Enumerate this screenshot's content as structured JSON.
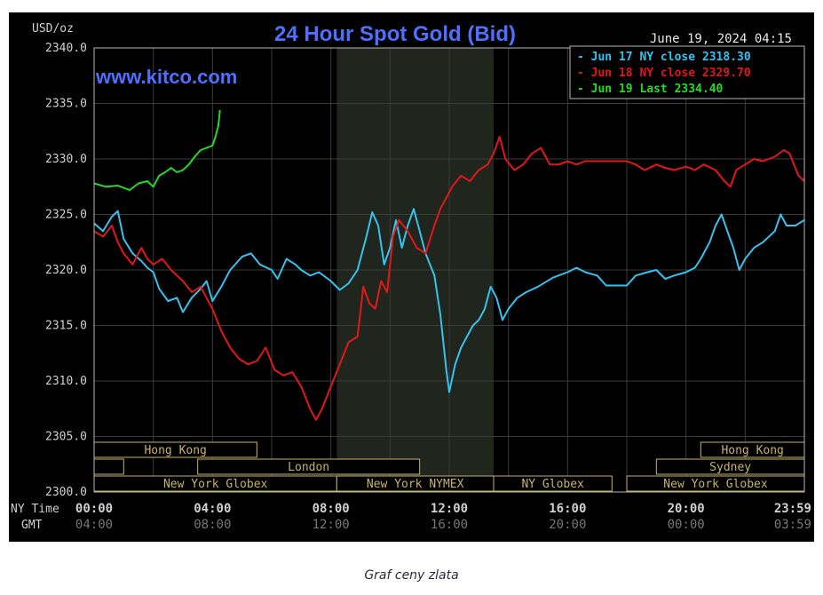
{
  "caption": "Graf ceny zlata",
  "colors": {
    "background": "#000000",
    "grid": "#3a3a3a",
    "frame": "#b8b8b8",
    "title": "#4f6fff",
    "watermark": "#4f6fff",
    "axis_text": "#d0d0d0",
    "gmt_text": "#777777",
    "session_box": "#c8b26a",
    "nymex_shade": "#20261e",
    "jun17": "#36c2ee",
    "jun18": "#e21818",
    "jun19": "#22dd22"
  },
  "chart_data": {
    "type": "line",
    "title": "24 Hour Spot Gold (Bid)",
    "watermark": "www.kitco.com",
    "timestamp": "June 19, 2024 04:15",
    "ylabel": "USD/oz",
    "ylim": [
      2300,
      2340
    ],
    "yticks": [
      "2340.0",
      "2335.0",
      "2330.0",
      "2325.0",
      "2320.0",
      "2315.0",
      "2310.0",
      "2305.0",
      "2300.0"
    ],
    "xlim": [
      0,
      24
    ],
    "xticks": [
      {
        "hour": 0,
        "ny": "00:00",
        "gmt": "04:00"
      },
      {
        "hour": 4,
        "ny": "04:00",
        "gmt": "08:00"
      },
      {
        "hour": 8,
        "ny": "08:00",
        "gmt": "12:00"
      },
      {
        "hour": 12,
        "ny": "12:00",
        "gmt": "16:00"
      },
      {
        "hour": 16,
        "ny": "16:00",
        "gmt": "20:00"
      },
      {
        "hour": 20,
        "ny": "20:00",
        "gmt": "00:00"
      },
      {
        "hour": 23.98,
        "ny": "23:59",
        "gmt": "03:59"
      }
    ],
    "x_row_labels": {
      "ny": "NY Time",
      "gmt": "GMT"
    },
    "grid": true,
    "legend_position": "top-right",
    "legend": [
      {
        "prefix": "-",
        "text": "Jun 17 NY close 2318.30",
        "color": "#36c2ee"
      },
      {
        "prefix": "-",
        "text": "Jun 18 NY close 2329.70",
        "color": "#e21818"
      },
      {
        "prefix": "-",
        "text": "Jun 19 Last 2334.40",
        "color": "#22dd22"
      }
    ],
    "shaded_region": {
      "label": "NYMEX",
      "start": 8.2,
      "end": 13.5
    },
    "sessions": [
      {
        "label": "Hong Kong",
        "start": 0,
        "end": 5.5,
        "row": 0
      },
      {
        "label": "",
        "start": 0,
        "end": 1,
        "row": 1
      },
      {
        "label": "London",
        "start": 3.5,
        "end": 11,
        "row": 1
      },
      {
        "label": "New York Globex",
        "start": 0,
        "end": 8.2,
        "row": 2
      },
      {
        "label": "New York NYMEX",
        "start": 8.2,
        "end": 13.5,
        "row": 2
      },
      {
        "label": "NY Globex",
        "start": 13.5,
        "end": 17.5,
        "row": 2
      },
      {
        "label": "Hong Kong",
        "start": 20.5,
        "end": 24,
        "row": 0
      },
      {
        "label": "Sydney",
        "start": 19,
        "end": 24,
        "row": 1
      },
      {
        "label": "New York Globex",
        "start": 18,
        "end": 24,
        "row": 2
      }
    ],
    "series": [
      {
        "name": "Jun 17",
        "color": "#36c2ee",
        "points": [
          [
            0,
            2324.2
          ],
          [
            0.3,
            2323.5
          ],
          [
            0.6,
            2324.8
          ],
          [
            0.8,
            2325.3
          ],
          [
            1.0,
            2322.8
          ],
          [
            1.3,
            2321.5
          ],
          [
            1.6,
            2320.8
          ],
          [
            1.8,
            2320.2
          ],
          [
            2.0,
            2319.8
          ],
          [
            2.2,
            2318.3
          ],
          [
            2.5,
            2317.2
          ],
          [
            2.8,
            2317.5
          ],
          [
            3.0,
            2316.2
          ],
          [
            3.3,
            2317.5
          ],
          [
            3.6,
            2318.3
          ],
          [
            3.8,
            2319.0
          ],
          [
            4.0,
            2317.2
          ],
          [
            4.3,
            2318.5
          ],
          [
            4.6,
            2320.0
          ],
          [
            5.0,
            2321.2
          ],
          [
            5.3,
            2321.5
          ],
          [
            5.6,
            2320.5
          ],
          [
            6.0,
            2320.0
          ],
          [
            6.2,
            2319.2
          ],
          [
            6.5,
            2321.0
          ],
          [
            6.8,
            2320.5
          ],
          [
            7.0,
            2320.0
          ],
          [
            7.3,
            2319.5
          ],
          [
            7.6,
            2319.8
          ],
          [
            8.0,
            2319.0
          ],
          [
            8.3,
            2318.2
          ],
          [
            8.6,
            2318.8
          ],
          [
            8.9,
            2320.0
          ],
          [
            9.2,
            2323.0
          ],
          [
            9.4,
            2325.2
          ],
          [
            9.6,
            2324.0
          ],
          [
            9.8,
            2320.5
          ],
          [
            10.0,
            2322.0
          ],
          [
            10.2,
            2324.5
          ],
          [
            10.4,
            2322.0
          ],
          [
            10.6,
            2324.0
          ],
          [
            10.8,
            2325.5
          ],
          [
            11.0,
            2323.5
          ],
          [
            11.2,
            2321.5
          ],
          [
            11.5,
            2319.5
          ],
          [
            11.7,
            2316.0
          ],
          [
            11.9,
            2311.0
          ],
          [
            12.0,
            2309.0
          ],
          [
            12.2,
            2311.5
          ],
          [
            12.4,
            2313.0
          ],
          [
            12.6,
            2314.0
          ],
          [
            12.8,
            2315.0
          ],
          [
            13.0,
            2315.5
          ],
          [
            13.2,
            2316.5
          ],
          [
            13.4,
            2318.5
          ],
          [
            13.6,
            2317.5
          ],
          [
            13.8,
            2315.5
          ],
          [
            14.0,
            2316.5
          ],
          [
            14.3,
            2317.5
          ],
          [
            14.6,
            2318.0
          ],
          [
            15.0,
            2318.5
          ],
          [
            15.5,
            2319.3
          ],
          [
            16.0,
            2319.8
          ],
          [
            16.3,
            2320.2
          ],
          [
            16.6,
            2319.8
          ],
          [
            17.0,
            2319.5
          ],
          [
            17.3,
            2318.6
          ],
          [
            18.0,
            2318.6
          ],
          [
            18.3,
            2319.5
          ],
          [
            18.7,
            2319.8
          ],
          [
            19.0,
            2320.0
          ],
          [
            19.3,
            2319.2
          ],
          [
            19.6,
            2319.5
          ],
          [
            20.0,
            2319.8
          ],
          [
            20.3,
            2320.2
          ],
          [
            20.5,
            2321.0
          ],
          [
            20.8,
            2322.5
          ],
          [
            21.0,
            2324.0
          ],
          [
            21.2,
            2325.0
          ],
          [
            21.4,
            2323.5
          ],
          [
            21.6,
            2322.0
          ],
          [
            21.8,
            2320.0
          ],
          [
            22.0,
            2321.0
          ],
          [
            22.3,
            2322.0
          ],
          [
            22.6,
            2322.5
          ],
          [
            23.0,
            2323.5
          ],
          [
            23.2,
            2325.0
          ],
          [
            23.4,
            2324.0
          ],
          [
            23.7,
            2324.0
          ],
          [
            24.0,
            2324.5
          ]
        ]
      },
      {
        "name": "Jun 18",
        "color": "#e21818",
        "points": [
          [
            0,
            2323.5
          ],
          [
            0.3,
            2323.0
          ],
          [
            0.6,
            2324.0
          ],
          [
            0.8,
            2322.5
          ],
          [
            1.0,
            2321.5
          ],
          [
            1.3,
            2320.5
          ],
          [
            1.6,
            2322.0
          ],
          [
            1.8,
            2321.0
          ],
          [
            2.0,
            2320.5
          ],
          [
            2.3,
            2321.0
          ],
          [
            2.6,
            2320.0
          ],
          [
            3.0,
            2319.0
          ],
          [
            3.3,
            2318.0
          ],
          [
            3.6,
            2318.5
          ],
          [
            4.0,
            2316.5
          ],
          [
            4.3,
            2314.5
          ],
          [
            4.6,
            2313.0
          ],
          [
            4.9,
            2312.0
          ],
          [
            5.2,
            2311.5
          ],
          [
            5.5,
            2311.8
          ],
          [
            5.8,
            2313.0
          ],
          [
            6.1,
            2311.0
          ],
          [
            6.4,
            2310.5
          ],
          [
            6.7,
            2310.8
          ],
          [
            7.0,
            2309.5
          ],
          [
            7.3,
            2307.5
          ],
          [
            7.5,
            2306.5
          ],
          [
            7.7,
            2307.5
          ],
          [
            8.0,
            2309.5
          ],
          [
            8.3,
            2311.5
          ],
          [
            8.6,
            2313.5
          ],
          [
            8.9,
            2314.0
          ],
          [
            9.1,
            2318.5
          ],
          [
            9.3,
            2317.0
          ],
          [
            9.5,
            2316.5
          ],
          [
            9.7,
            2319.0
          ],
          [
            9.9,
            2318.0
          ],
          [
            10.1,
            2323.0
          ],
          [
            10.3,
            2324.5
          ],
          [
            10.6,
            2323.5
          ],
          [
            10.9,
            2322.0
          ],
          [
            11.2,
            2321.5
          ],
          [
            11.5,
            2324.0
          ],
          [
            11.7,
            2325.5
          ],
          [
            11.9,
            2326.5
          ],
          [
            12.1,
            2327.5
          ],
          [
            12.4,
            2328.5
          ],
          [
            12.7,
            2328.0
          ],
          [
            13.0,
            2329.0
          ],
          [
            13.3,
            2329.5
          ],
          [
            13.5,
            2330.5
          ],
          [
            13.7,
            2332.0
          ],
          [
            13.9,
            2330.0
          ],
          [
            14.2,
            2329.0
          ],
          [
            14.5,
            2329.5
          ],
          [
            14.8,
            2330.5
          ],
          [
            15.1,
            2331.0
          ],
          [
            15.4,
            2329.5
          ],
          [
            15.7,
            2329.5
          ],
          [
            16.0,
            2329.8
          ],
          [
            16.3,
            2329.5
          ],
          [
            16.6,
            2329.8
          ],
          [
            17.0,
            2329.8
          ],
          [
            17.5,
            2329.8
          ],
          [
            18.0,
            2329.8
          ],
          [
            18.3,
            2329.5
          ],
          [
            18.6,
            2329.0
          ],
          [
            19.0,
            2329.5
          ],
          [
            19.3,
            2329.2
          ],
          [
            19.6,
            2329.0
          ],
          [
            20.0,
            2329.3
          ],
          [
            20.3,
            2329.0
          ],
          [
            20.6,
            2329.5
          ],
          [
            21.0,
            2329.0
          ],
          [
            21.3,
            2328.0
          ],
          [
            21.5,
            2327.5
          ],
          [
            21.7,
            2329.0
          ],
          [
            22.0,
            2329.5
          ],
          [
            22.3,
            2330.0
          ],
          [
            22.6,
            2329.8
          ],
          [
            23.0,
            2330.2
          ],
          [
            23.3,
            2330.8
          ],
          [
            23.5,
            2330.5
          ],
          [
            23.8,
            2328.5
          ],
          [
            24.0,
            2328.0
          ]
        ]
      },
      {
        "name": "Jun 19",
        "color": "#22dd22",
        "points": [
          [
            0,
            2327.8
          ],
          [
            0.4,
            2327.5
          ],
          [
            0.8,
            2327.6
          ],
          [
            1.2,
            2327.2
          ],
          [
            1.5,
            2327.8
          ],
          [
            1.8,
            2328.0
          ],
          [
            2.0,
            2327.5
          ],
          [
            2.2,
            2328.5
          ],
          [
            2.4,
            2328.8
          ],
          [
            2.6,
            2329.2
          ],
          [
            2.8,
            2328.8
          ],
          [
            3.0,
            2329.0
          ],
          [
            3.2,
            2329.5
          ],
          [
            3.4,
            2330.2
          ],
          [
            3.6,
            2330.8
          ],
          [
            3.8,
            2331.0
          ],
          [
            4.0,
            2331.2
          ],
          [
            4.1,
            2332.0
          ],
          [
            4.2,
            2333.0
          ],
          [
            4.25,
            2334.4
          ]
        ]
      }
    ]
  }
}
